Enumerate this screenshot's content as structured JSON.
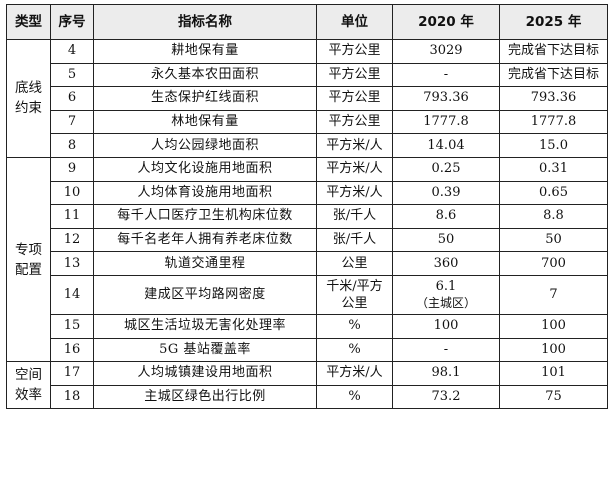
{
  "headers": {
    "type": "类型",
    "no": "序号",
    "name": "指标名称",
    "unit": "单位",
    "y2020": "2020 年",
    "y2025": "2025 年"
  },
  "groups": [
    {
      "label_lines": [
        "底线",
        "约束"
      ]
    },
    {
      "label_lines": [
        "专项",
        "配置"
      ]
    },
    {
      "label_lines": [
        "空间",
        "效率"
      ]
    }
  ],
  "rows": [
    {
      "no": "4",
      "name": "耕地保有量",
      "unit": "平方公里",
      "v2020": "3029",
      "v2025": "完成省下达目标"
    },
    {
      "no": "5",
      "name": "永久基本农田面积",
      "unit": "平方公里",
      "v2020": "-",
      "v2025": "完成省下达目标"
    },
    {
      "no": "6",
      "name": "生态保护红线面积",
      "unit": "平方公里",
      "v2020": "793.36",
      "v2025": "793.36"
    },
    {
      "no": "7",
      "name": "林地保有量",
      "unit": "平方公里",
      "v2020": "1777.8",
      "v2025": "1777.8"
    },
    {
      "no": "8",
      "name": "人均公园绿地面积",
      "unit": "平方米/人",
      "v2020": "14.04",
      "v2025": "15.0"
    },
    {
      "no": "9",
      "name": "人均文化设施用地面积",
      "unit": "平方米/人",
      "v2020": "0.25",
      "v2025": "0.31"
    },
    {
      "no": "10",
      "name": "人均体育设施用地面积",
      "unit": "平方米/人",
      "v2020": "0.39",
      "v2025": "0.65"
    },
    {
      "no": "11",
      "name": "每千人口医疗卫生机构床位数",
      "unit": "张/千人",
      "v2020": "8.6",
      "v2025": "8.8"
    },
    {
      "no": "12",
      "name": "每千名老年人拥有养老床位数",
      "unit": "张/千人",
      "v2020": "50",
      "v2025": "50"
    },
    {
      "no": "13",
      "name": "轨道交通里程",
      "unit": "公里",
      "v2020": "360",
      "v2025": "700"
    },
    {
      "no": "14",
      "name": "建成区平均路网密度",
      "unit_lines": [
        "千米/平方",
        "公里"
      ],
      "v2020_lines": [
        "6.1",
        "（主城区）"
      ],
      "v2025": "7"
    },
    {
      "no": "15",
      "name": "城区生活垃圾无害化处理率",
      "unit": "%",
      "v2020": "100",
      "v2025": "100"
    },
    {
      "no": "16",
      "name": "5G 基站覆盖率",
      "unit": "%",
      "v2020": "-",
      "v2025": "100"
    },
    {
      "no": "17",
      "name": "人均城镇建设用地面积",
      "unit": "平方米/人",
      "v2020": "98.1",
      "v2025": "101"
    },
    {
      "no": "18",
      "name": "主城区绿色出行比例",
      "unit": "%",
      "v2020": "73.2",
      "v2025": "75"
    }
  ]
}
